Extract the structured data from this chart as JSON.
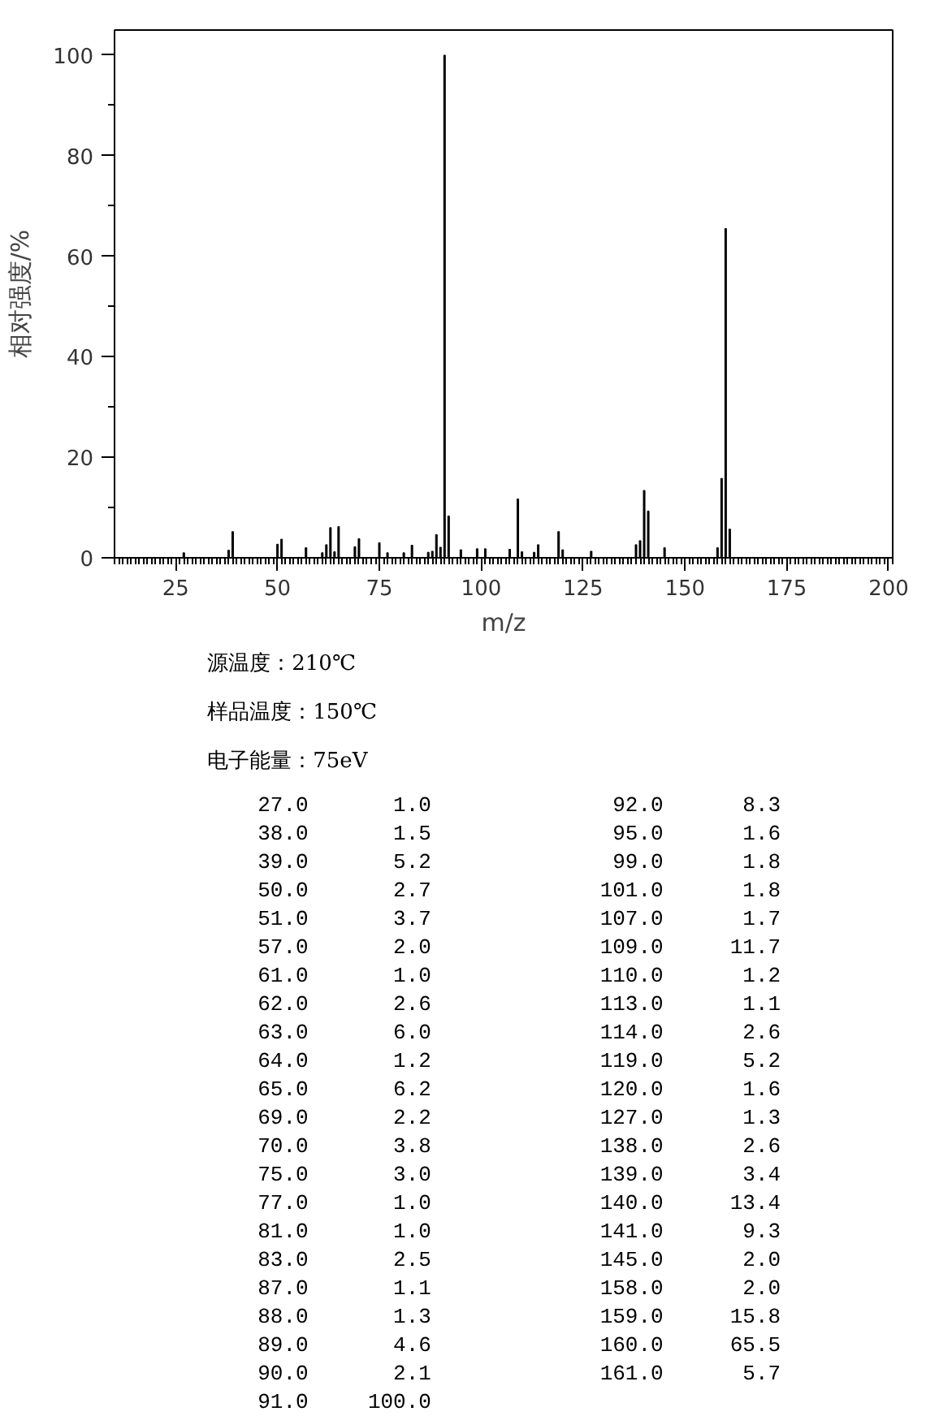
{
  "chart_data": [
    {
      "type": "bar",
      "xlabel": "m/z",
      "ylabel": "相对强度/%",
      "color": "#000000",
      "xlim": [
        10,
        201
      ],
      "xticks": [
        25,
        50,
        75,
        100,
        125,
        150,
        175,
        200
      ],
      "ylim": [
        0,
        105
      ],
      "yticks": [
        0,
        20,
        40,
        60,
        80,
        100
      ],
      "x": [
        27,
        38,
        39,
        50,
        51,
        57,
        61,
        62,
        63,
        64,
        65,
        69,
        70,
        75,
        77,
        81,
        83,
        87,
        88,
        89,
        90,
        91,
        92,
        95,
        99,
        101,
        107,
        109,
        110,
        113,
        114,
        119,
        120,
        127,
        138,
        139,
        140,
        141,
        145,
        158,
        159,
        160,
        161
      ],
      "values": [
        1.0,
        1.5,
        5.2,
        2.7,
        3.7,
        2.0,
        1.0,
        2.6,
        6.0,
        1.2,
        6.2,
        2.2,
        3.8,
        3.0,
        1.0,
        1.0,
        2.5,
        1.1,
        1.3,
        4.6,
        2.1,
        100.0,
        8.3,
        1.6,
        1.8,
        1.8,
        1.7,
        11.7,
        1.2,
        1.1,
        2.6,
        5.2,
        1.6,
        1.3,
        2.6,
        3.4,
        13.4,
        9.3,
        2.0,
        2.0,
        15.8,
        65.5,
        5.7
      ]
    },
    {
      "type": "other",
      "annotations": [
        "源温度：210℃",
        "样品温度：150℃",
        "电子能量：75eV"
      ],
      "categories": [
        "27.0",
        "38.0",
        "39.0",
        "50.0",
        "51.0",
        "57.0",
        "61.0",
        "62.0",
        "63.0",
        "64.0",
        "65.0",
        "69.0",
        "70.0",
        "75.0",
        "77.0",
        "81.0",
        "83.0",
        "87.0",
        "88.0",
        "89.0",
        "90.0",
        "91.0",
        "92.0",
        "95.0",
        "99.0",
        "101.0",
        "107.0",
        "109.0",
        "110.0",
        "113.0",
        "114.0",
        "119.0",
        "120.0",
        "127.0",
        "138.0",
        "139.0",
        "140.0",
        "141.0",
        "145.0",
        "158.0",
        "159.0",
        "160.0",
        "161.0"
      ],
      "value_labels": [
        "1.0",
        "1.5",
        "5.2",
        "2.7",
        "3.7",
        "2.0",
        "1.0",
        "2.6",
        "6.0",
        "1.2",
        "6.2",
        "2.2",
        "3.8",
        "3.0",
        "1.0",
        "1.0",
        "2.5",
        "1.1",
        "1.3",
        "4.6",
        "2.1",
        "100.0",
        "8.3",
        "1.6",
        "1.8",
        "1.8",
        "1.7",
        "11.7",
        "1.2",
        "1.1",
        "2.6",
        "5.2",
        "1.6",
        "1.3",
        "2.6",
        "3.4",
        "13.4",
        "9.3",
        "2.0",
        "2.0",
        "15.8",
        "65.5",
        "5.7"
      ]
    }
  ]
}
